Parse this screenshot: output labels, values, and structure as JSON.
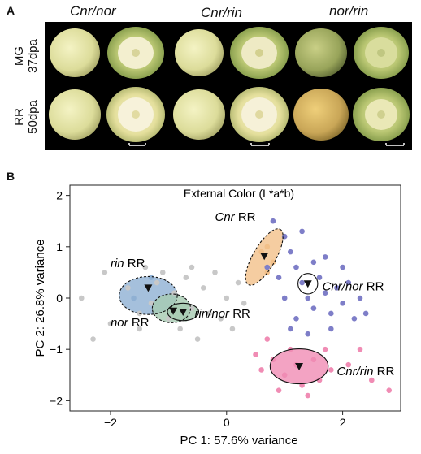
{
  "panel_a": {
    "label": "A",
    "group_titles": [
      "Cnr/nor",
      "Cnr/rin",
      "nor/rin"
    ],
    "row_labels": [
      {
        "stage": "MG",
        "age": "37dpa"
      },
      {
        "stage": "RR",
        "age": "50dpa"
      }
    ]
  },
  "panel_b": {
    "label": "B"
  },
  "chart_data": {
    "type": "scatter",
    "title": "External Color (L*a*b)",
    "xlabel": "PC 1: 57.6% variance",
    "ylabel": "PC 2: 26.8% variance",
    "xlim": [
      -2.7,
      3.0
    ],
    "ylim": [
      -2.2,
      2.2
    ],
    "xticks": [
      -2,
      0,
      2
    ],
    "yticks": [
      -2,
      -1,
      0,
      1,
      2
    ],
    "grid": false,
    "colors": {
      "gray": "#c8c8c8",
      "purple": "#7e7ec8",
      "pink": "#f08cb4",
      "orange": "#f2c089",
      "blue": "#8fb0d3",
      "green": "#a6cbb1"
    },
    "series": [
      {
        "color": "gray",
        "points": [
          [
            -2.1,
            0.5
          ],
          [
            -2.3,
            -0.8
          ],
          [
            -2.0,
            -0.5
          ],
          [
            -1.7,
            0.2
          ],
          [
            -1.5,
            -0.3
          ],
          [
            -1.4,
            0.6
          ],
          [
            -1.3,
            -0.1
          ],
          [
            -1.2,
            0.3
          ],
          [
            -1.0,
            -0.4
          ],
          [
            -0.9,
            0.1
          ],
          [
            -0.8,
            -0.6
          ],
          [
            -0.7,
            0.4
          ],
          [
            -0.6,
            -0.2
          ],
          [
            -0.5,
            -0.8
          ],
          [
            -0.4,
            0.2
          ],
          [
            -0.3,
            -0.3
          ],
          [
            -0.2,
            0.5
          ],
          [
            -0.1,
            -0.4
          ],
          [
            0.0,
            0.0
          ],
          [
            0.1,
            -0.6
          ],
          [
            0.2,
            0.3
          ],
          [
            0.3,
            -0.1
          ],
          [
            -1.5,
            -0.6
          ],
          [
            -1.1,
            0.5
          ],
          [
            -0.6,
            0.6
          ],
          [
            -2.5,
            0.0
          ]
        ]
      },
      {
        "color": "purple",
        "points": [
          [
            0.8,
            1.5
          ],
          [
            1.0,
            1.2
          ],
          [
            1.1,
            0.9
          ],
          [
            1.2,
            0.6
          ],
          [
            1.3,
            0.3
          ],
          [
            1.4,
            0.0
          ],
          [
            1.5,
            -0.2
          ],
          [
            1.6,
            0.4
          ],
          [
            1.7,
            0.1
          ],
          [
            1.8,
            -0.3
          ],
          [
            1.9,
            0.2
          ],
          [
            2.0,
            -0.1
          ],
          [
            2.1,
            0.3
          ],
          [
            2.2,
            -0.4
          ],
          [
            2.3,
            0.0
          ],
          [
            1.2,
            -0.4
          ],
          [
            1.0,
            0.0
          ],
          [
            0.9,
            0.4
          ],
          [
            1.1,
            -0.6
          ],
          [
            1.5,
            0.7
          ],
          [
            1.7,
            0.8
          ],
          [
            1.3,
            1.3
          ],
          [
            0.7,
            0.6
          ],
          [
            2.0,
            0.6
          ],
          [
            1.4,
            -0.7
          ],
          [
            1.8,
            -0.6
          ],
          [
            2.4,
            -0.3
          ]
        ]
      },
      {
        "color": "pink",
        "points": [
          [
            0.5,
            -1.1
          ],
          [
            0.6,
            -1.4
          ],
          [
            0.8,
            -1.2
          ],
          [
            1.0,
            -1.5
          ],
          [
            1.1,
            -1.0
          ],
          [
            1.2,
            -1.3
          ],
          [
            1.3,
            -1.7
          ],
          [
            1.5,
            -1.2
          ],
          [
            1.6,
            -1.6
          ],
          [
            1.8,
            -1.4
          ],
          [
            2.1,
            -1.3
          ],
          [
            2.5,
            -1.6
          ],
          [
            2.8,
            -1.8
          ],
          [
            0.9,
            -1.8
          ],
          [
            1.4,
            -1.9
          ],
          [
            1.7,
            -1.0
          ],
          [
            2.3,
            -1.0
          ],
          [
            0.7,
            -0.8
          ]
        ]
      },
      {
        "color": "orange",
        "points": [
          [
            0.7,
            1.0
          ],
          [
            0.6,
            0.9
          ],
          [
            0.8,
            0.7
          ],
          [
            0.7,
            0.5
          ]
        ]
      },
      {
        "color": "blue",
        "points": [
          [
            -1.6,
            0.0
          ],
          [
            -1.3,
            0.4
          ]
        ]
      },
      {
        "color": "green",
        "points": [
          [
            -0.9,
            -0.2
          ],
          [
            -0.7,
            -0.4
          ]
        ]
      }
    ],
    "ellipses": [
      {
        "name": "Cnr RR",
        "cx": 0.65,
        "cy": 0.8,
        "rx": 0.55,
        "ry": 0.22,
        "angle": -60,
        "fill": "orange",
        "stroke": "dashed",
        "centroid": [
          0.65,
          0.82
        ]
      },
      {
        "name": "rin RR",
        "cx": -1.35,
        "cy": 0.05,
        "rx": 0.5,
        "ry": 0.37,
        "angle": 0,
        "fill": "blue",
        "stroke": "dashed",
        "centroid": [
          -1.35,
          0.2
        ]
      },
      {
        "name": "nor RR",
        "cx": -0.95,
        "cy": -0.2,
        "rx": 0.33,
        "ry": 0.28,
        "angle": 0,
        "fill": "green",
        "stroke": "dashed",
        "centroid": [
          -0.92,
          -0.25
        ]
      },
      {
        "name": "rin/nor RR",
        "cx": -0.75,
        "cy": -0.27,
        "rx": 0.27,
        "ry": 0.17,
        "angle": 0,
        "fill": "green",
        "stroke": "solid",
        "centroid": [
          -0.75,
          -0.27
        ]
      },
      {
        "name": "Cnr/nor RR",
        "cx": 1.4,
        "cy": 0.28,
        "rx": 0.17,
        "ry": 0.2,
        "angle": 0,
        "fill": "none",
        "stroke": "solid",
        "centroid": [
          1.4,
          0.28
        ]
      },
      {
        "name": "Cnr/rin RR",
        "cx": 1.25,
        "cy": -1.33,
        "rx": 0.5,
        "ry": 0.34,
        "angle": 0,
        "fill": "pink",
        "stroke": "solid",
        "centroid": [
          1.25,
          -1.33
        ]
      }
    ],
    "annotations": [
      {
        "text_italic": "Cnr",
        "text": " RR",
        "x": -0.2,
        "y": 1.5
      },
      {
        "text_italic": "rin",
        "text": " RR",
        "x": -2.0,
        "y": 0.6
      },
      {
        "text_italic": "nor",
        "text": " RR",
        "x": -2.0,
        "y": -0.55
      },
      {
        "text_italic": "rin/nor",
        "text": " RR",
        "x": -0.55,
        "y": -0.38
      },
      {
        "text_italic": "Cnr/nor",
        "text": " RR",
        "x": 1.65,
        "y": 0.15
      },
      {
        "text_italic": "Cnr/rin",
        "text": " RR",
        "x": 1.9,
        "y": -1.5
      }
    ]
  }
}
